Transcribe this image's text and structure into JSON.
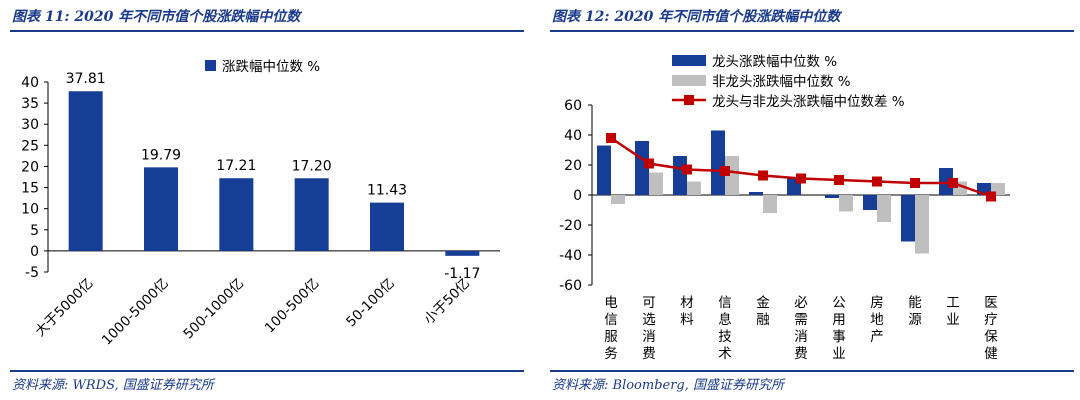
{
  "left": {
    "title": "图表 11: 2020 年不同市值个股涨跌幅中位数",
    "source": "资料来源: WRDS, 国盛证券研究所"
  },
  "right": {
    "title": "图表 12: 2020 年不同市值个股涨跌幅中位数",
    "source": "资料来源: Bloomberg, 国盛证券研究所"
  },
  "chart_data": [
    {
      "type": "bar",
      "title": "",
      "categories": [
        "大于5000亿",
        "1000-5000亿",
        "500-1000亿",
        "100-500亿",
        "50-100亿",
        "小于50亿"
      ],
      "series": [
        {
          "name": "涨跌幅中位数 %",
          "values": [
            37.81,
            19.79,
            17.21,
            17.2,
            11.43,
            -1.17
          ]
        }
      ],
      "value_labels": [
        "37.81",
        "19.79",
        "17.21",
        "17.20",
        "11.43",
        "-1.17"
      ],
      "ylim": [
        -5,
        40
      ],
      "yticks": [
        40,
        35,
        30,
        25,
        20,
        15,
        10,
        5,
        0,
        -5
      ],
      "ytick_labels": [
        "40",
        "35",
        "30",
        "25",
        "20",
        "15",
        "10",
        "5",
        "0",
        "-5"
      ],
      "legend_position": "top",
      "colors": {
        "bar": "#163e96"
      }
    },
    {
      "type": "bar",
      "title": "",
      "categories": [
        "电信服务",
        "可选消费",
        "材料",
        "信息技术",
        "金融",
        "必需消费",
        "公用事业",
        "房地产",
        "能源",
        "工业",
        "医疗保健"
      ],
      "series": [
        {
          "name": "龙头涨跌幅中位数 %",
          "kind": "bar",
          "values": [
            33,
            36,
            26,
            43,
            2,
            11,
            -2,
            -10,
            -31,
            18,
            8
          ]
        },
        {
          "name": "非龙头涨跌幅中位数 %",
          "kind": "bar",
          "values": [
            -6,
            15,
            9,
            26,
            -12,
            0,
            -11,
            -18,
            -39,
            9,
            8
          ]
        },
        {
          "name": "龙头与非龙头涨跌幅中位数差 %",
          "kind": "line",
          "values": [
            38,
            21,
            17,
            16,
            13,
            11,
            10,
            9,
            8,
            8,
            -1
          ]
        }
      ],
      "ylim": [
        -60,
        60
      ],
      "yticks": [
        60,
        40,
        20,
        0,
        -20,
        -40,
        -60
      ],
      "ytick_labels": [
        "60",
        "40",
        "20",
        "0",
        "-20",
        "-40",
        "-60"
      ],
      "legend_position": "top-left",
      "colors": {
        "lead": "#163e96",
        "nonlead": "#bfbfbf",
        "diff": "#c00000"
      }
    }
  ]
}
